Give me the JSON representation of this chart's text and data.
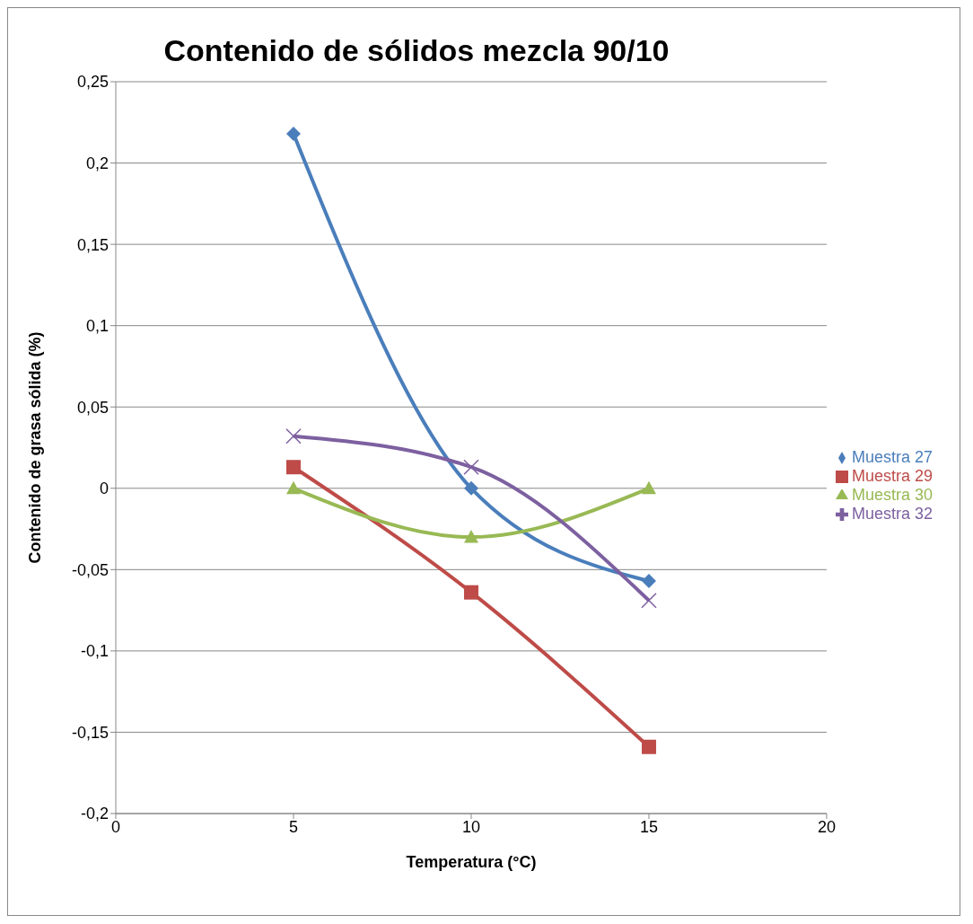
{
  "chart_data": {
    "type": "line",
    "title": "Contenido de sólidos mezcla 90/10",
    "xlabel": "Temperatura (°C)",
    "ylabel": "Contenido de grasa sólida (%)",
    "x": [
      5,
      10,
      15
    ],
    "series": [
      {
        "name": "Muestra 27",
        "color": "#4a7ebb",
        "marker": "diamond",
        "values": [
          0.218,
          0,
          -0.057
        ]
      },
      {
        "name": "Muestra 29",
        "color": "#be4b48",
        "marker": "square",
        "values": [
          0.013,
          -0.064,
          -0.159
        ]
      },
      {
        "name": "Muestra 30",
        "color": "#98b954",
        "marker": "triangle",
        "values": [
          0,
          -0.03,
          0
        ]
      },
      {
        "name": "Muestra 32",
        "color": "#7d60a0",
        "marker": "cross",
        "values": [
          0.032,
          0.013,
          -0.069
        ]
      }
    ],
    "xlim": [
      0,
      20
    ],
    "xticks": [
      0,
      5,
      10,
      15,
      20
    ],
    "ylim": [
      -0.2,
      0.25
    ],
    "yticks": [
      {
        "value": -0.2,
        "label": "-0,2"
      },
      {
        "value": -0.15,
        "label": "-0,15"
      },
      {
        "value": -0.1,
        "label": "-0,1"
      },
      {
        "value": -0.05,
        "label": "-0,05"
      },
      {
        "value": 0,
        "label": "0"
      },
      {
        "value": 0.05,
        "label": "0,05"
      },
      {
        "value": 0.1,
        "label": "0,1"
      },
      {
        "value": 0.15,
        "label": "0,15"
      },
      {
        "value": 0.2,
        "label": "0,2"
      },
      {
        "value": 0.25,
        "label": "0,25"
      }
    ],
    "grid": "y",
    "legend": "right",
    "line_style": "solid"
  }
}
